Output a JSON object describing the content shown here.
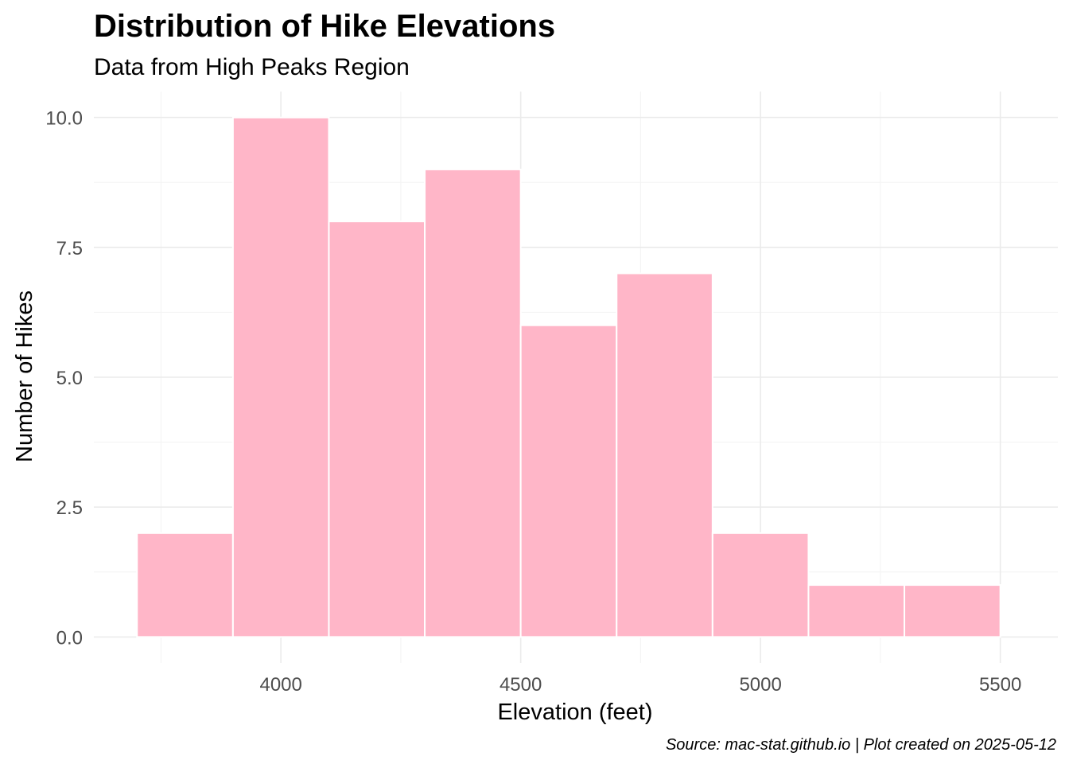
{
  "chart_data": {
    "type": "bar",
    "title": "Distribution of Hike Elevations",
    "subtitle": "Data from High Peaks Region",
    "xlabel": "Elevation (feet)",
    "ylabel": "Number of Hikes",
    "caption": "Source: mac-stat.github.io | Plot created on 2025-05-12",
    "bins": [
      {
        "x_start": 3700,
        "x_end": 3900,
        "count": 2
      },
      {
        "x_start": 3900,
        "x_end": 4100,
        "count": 10
      },
      {
        "x_start": 4100,
        "x_end": 4300,
        "count": 8
      },
      {
        "x_start": 4300,
        "x_end": 4500,
        "count": 9
      },
      {
        "x_start": 4500,
        "x_end": 4700,
        "count": 6
      },
      {
        "x_start": 4700,
        "x_end": 4900,
        "count": 7
      },
      {
        "x_start": 4900,
        "x_end": 5100,
        "count": 2
      },
      {
        "x_start": 5100,
        "x_end": 5300,
        "count": 1
      },
      {
        "x_start": 5300,
        "x_end": 5500,
        "count": 1
      }
    ],
    "xlim": [
      3610,
      5620
    ],
    "ylim": [
      -0.5,
      10.5
    ],
    "x_ticks": [
      4000,
      4500,
      5000,
      5500
    ],
    "y_ticks": [
      "0.0",
      "2.5",
      "5.0",
      "7.5",
      "10.0"
    ],
    "bar_color": "#ffb6c8",
    "bar_border_color": "#ffffff",
    "grid": true,
    "legend": "none"
  }
}
